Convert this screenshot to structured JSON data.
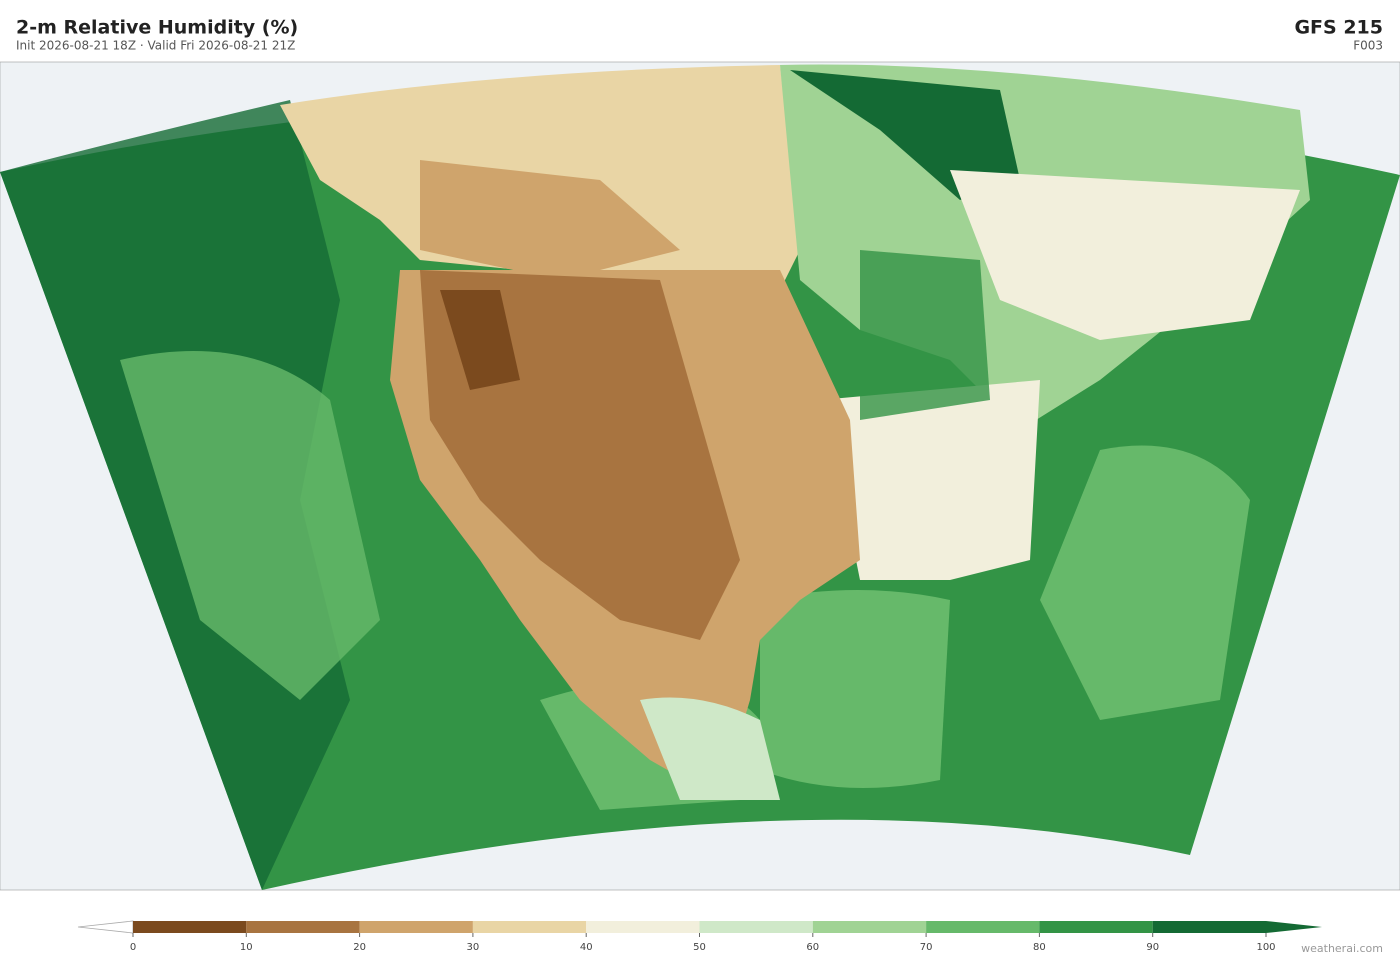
{
  "header": {
    "title": "2-m Relative Humidity  (%)",
    "subtitle": "Init 2026-08-21 18Z  ·  Valid Fri 2026-08-21 21Z",
    "model": "GFS  215",
    "forecast_hour": "F003"
  },
  "colorbar": {
    "ticks": [
      0,
      10,
      20,
      30,
      40,
      50,
      60,
      70,
      80,
      90,
      100
    ],
    "colors": [
      "#7b4a1e",
      "#a87440",
      "#cfa46c",
      "#e9d5a5",
      "#f2efdc",
      "#cfe8c8",
      "#a0d394",
      "#66b96a",
      "#339446",
      "#146a34"
    ]
  },
  "footer": {
    "credit": "weatherai.com"
  }
}
